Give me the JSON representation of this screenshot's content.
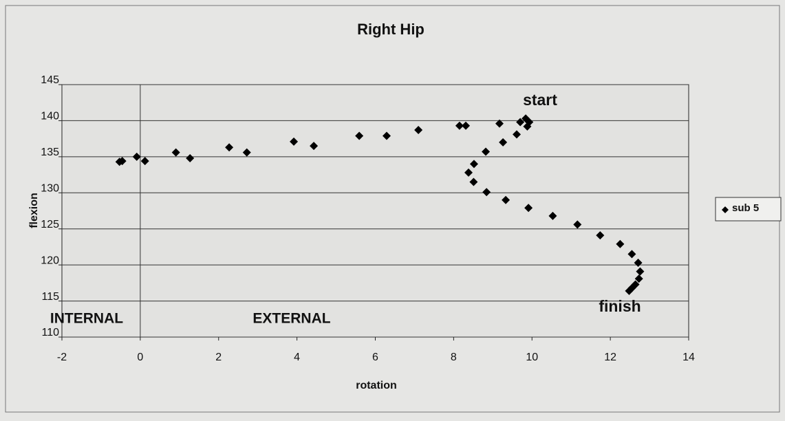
{
  "chart_data": {
    "type": "scatter",
    "title": "Right Hip",
    "x_label": "rotation",
    "y_label": "flexion",
    "annotations": [
      "start",
      "finish",
      "INTERNAL",
      "EXTERNAL"
    ],
    "series": [
      {
        "name": "sub 5",
        "color": "#000000",
        "x": [
          -0.53,
          -0.46,
          -0.09,
          0.12,
          0.91,
          1.27,
          2.27,
          2.72,
          3.92,
          4.43,
          5.59,
          6.29,
          7.1,
          8.15,
          8.31,
          9.17,
          9.7,
          9.84,
          9.93,
          9.88,
          9.61,
          9.26,
          8.82,
          8.52,
          8.38,
          8.51,
          8.84,
          9.33,
          9.91,
          10.53,
          11.16,
          11.74,
          12.25,
          12.55,
          12.71,
          12.76,
          12.73,
          12.64,
          12.55,
          12.48
        ],
        "values": [
          134.3,
          134.4,
          135.0,
          134.4,
          135.6,
          134.8,
          136.3,
          135.6,
          137.1,
          136.5,
          137.9,
          137.9,
          138.7,
          139.3,
          139.3,
          139.6,
          139.8,
          140.3,
          139.8,
          139.2,
          138.1,
          137.0,
          135.7,
          134.0,
          132.8,
          131.5,
          130.1,
          129.0,
          127.9,
          126.8,
          125.6,
          124.1,
          122.9,
          121.5,
          120.3,
          119.1,
          118.1,
          117.3,
          116.8,
          116.4
        ]
      }
    ],
    "xlim": [
      -2,
      14
    ],
    "xticks": [
      -2,
      0,
      2,
      4,
      6,
      8,
      10,
      12,
      14
    ],
    "ylim": [
      110,
      145
    ],
    "yticks": [
      110,
      115,
      120,
      125,
      130,
      135,
      140,
      145
    ],
    "grid": true,
    "legend": "right"
  }
}
